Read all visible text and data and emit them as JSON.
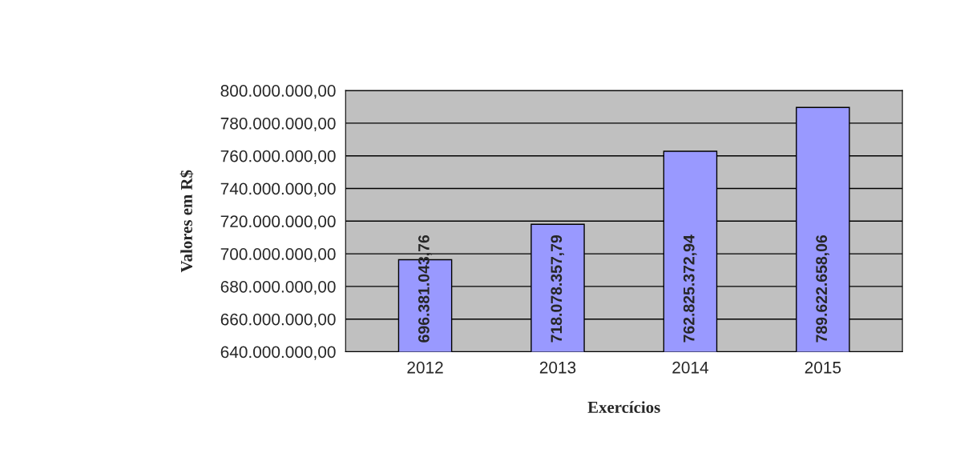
{
  "chart_data": {
    "type": "bar",
    "xlabel": "Exercícios",
    "ylabel": "Valores em R$",
    "categories": [
      "2012",
      "2013",
      "2014",
      "2015"
    ],
    "values": [
      696381043.76,
      718078357.79,
      762825372.94,
      789622658.06
    ],
    "value_labels": [
      "696.381.043,76",
      "718.078.357,79",
      "762.825.372,94",
      "789.622.658,06"
    ],
    "color": "#9999ff",
    "ylim": [
      640000000,
      800000000
    ],
    "yticks": [
      {
        "value": 640000000,
        "label": "640.000.000,00"
      },
      {
        "value": 660000000,
        "label": "660.000.000,00"
      },
      {
        "value": 680000000,
        "label": "680.000.000,00"
      },
      {
        "value": 700000000,
        "label": "700.000.000,00"
      },
      {
        "value": 720000000,
        "label": "720.000.000,00"
      },
      {
        "value": 740000000,
        "label": "740.000.000,00"
      },
      {
        "value": 760000000,
        "label": "760.000.000,00"
      },
      {
        "value": 780000000,
        "label": "780.000.000,00"
      },
      {
        "value": 800000000,
        "label": "800.000.000,00"
      }
    ],
    "grid": "y",
    "legend": false
  }
}
